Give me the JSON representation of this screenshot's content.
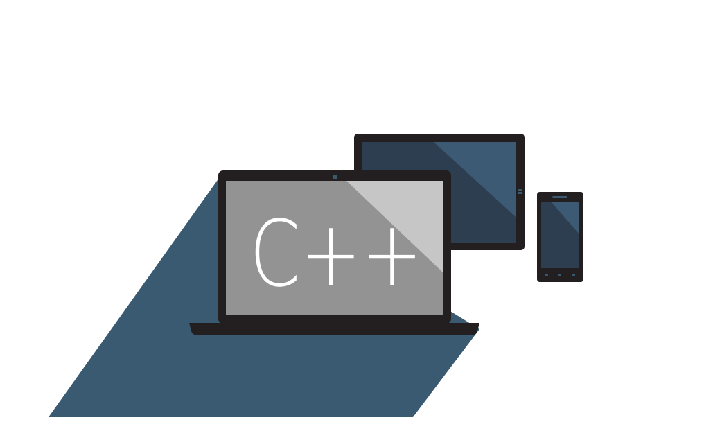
{
  "screen_text": "C++",
  "colors": {
    "background": "#ffffff",
    "shadow": "#3a5a72",
    "device_frame": "#231f20",
    "laptop_screen": "#939393",
    "laptop_glare": "#c6c6c6",
    "tablet_screen": "#2e3e51",
    "tablet_glare": "#3c5a73",
    "phone_screen": "#2e3e51",
    "phone_glare": "#3c5a73",
    "indicator": "#3a5a72",
    "text": "#ffffff"
  },
  "icons": [
    "laptop-icon",
    "tablet-icon",
    "phone-icon",
    "windows-logo-icon"
  ]
}
